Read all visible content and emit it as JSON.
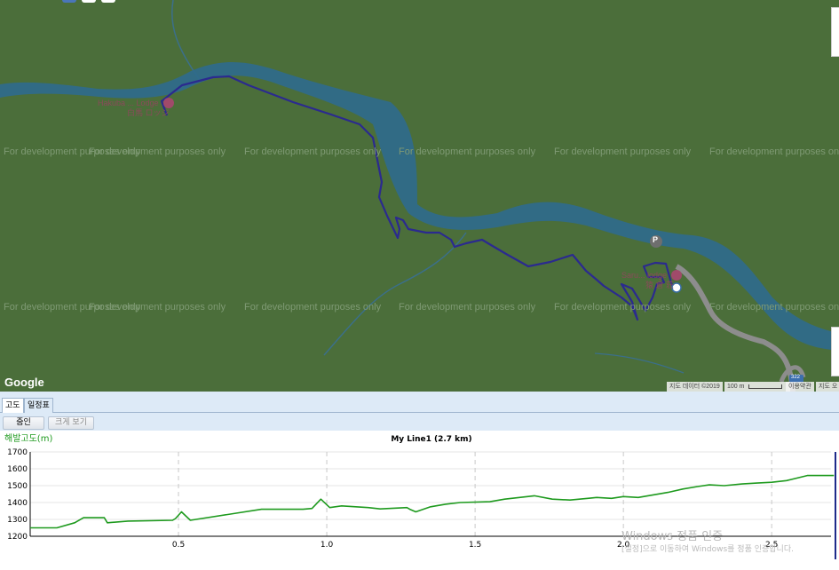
{
  "map": {
    "watermark_text": "For development purposes only",
    "google_logo": "Google",
    "poi_labels": [
      {
        "name": "Hakuba Lodge",
        "text": "Hakuba ... Lodge"
      },
      {
        "name": "sub",
        "text": "白馬 ロッジ"
      },
      {
        "name": "Saru lodge",
        "text": "Saru... lodge"
      },
      {
        "name": "sub2",
        "text": "猿 倉 荘"
      }
    ],
    "parking_label": "P",
    "road_badge": "322",
    "attribution": {
      "map_data": "지도 데이터 ©2019",
      "scale": "100 m",
      "terms": "이용약관",
      "report": "지도 오"
    },
    "colors": {
      "land": "#4b6e3a",
      "water": "#2f6a8c",
      "route": "#2b2a8f",
      "road": "#8d8d8d"
    }
  },
  "panel": {
    "tabs": [
      {
        "label": "고도",
        "active": true
      },
      {
        "label": "일정표",
        "active": false
      }
    ],
    "zoom_in_label": "줌인",
    "zoom_out_label": "크게 보기"
  },
  "chart_data": {
    "type": "line",
    "title": "My Line1 (2.7 km)",
    "ylabel": "해발고도(m)",
    "xlabel": "",
    "ylim": [
      1200,
      1700
    ],
    "xlim": [
      0,
      2.7
    ],
    "yticks": [
      1200,
      1300,
      1400,
      1500,
      1600,
      1700
    ],
    "xticks": [
      0.5,
      1.0,
      1.5,
      2.0,
      2.5
    ],
    "xtick_labels": [
      "0.5",
      "1.0",
      "1.5",
      "2.0",
      "2.5"
    ],
    "grid": true,
    "series": [
      {
        "color": "#1e9a1e",
        "x": [
          0.0,
          0.09,
          0.15,
          0.18,
          0.25,
          0.26,
          0.33,
          0.48,
          0.49,
          0.51,
          0.54,
          0.78,
          0.92,
          0.95,
          0.98,
          1.01,
          1.05,
          1.14,
          1.18,
          1.27,
          1.28,
          1.3,
          1.35,
          1.4,
          1.45,
          1.55,
          1.6,
          1.65,
          1.7,
          1.76,
          1.82,
          1.88,
          1.91,
          1.96,
          2.0,
          2.05,
          2.15,
          2.2,
          2.25,
          2.29,
          2.34,
          2.4,
          2.45,
          2.5,
          2.55,
          2.62,
          2.71
        ],
        "y": [
          1250,
          1250,
          1280,
          1310,
          1310,
          1280,
          1290,
          1295,
          1305,
          1345,
          1295,
          1360,
          1360,
          1365,
          1420,
          1370,
          1380,
          1370,
          1362,
          1370,
          1360,
          1345,
          1375,
          1390,
          1400,
          1405,
          1420,
          1430,
          1440,
          1420,
          1415,
          1425,
          1430,
          1425,
          1435,
          1430,
          1460,
          1480,
          1495,
          1505,
          1500,
          1510,
          1515,
          1520,
          1530,
          1560,
          1560
        ]
      }
    ]
  },
  "windows_activation": {
    "title": "Windows 정품 인증",
    "body": "[설정]으로 이동하여 Windows를 정품 인증합니다."
  }
}
